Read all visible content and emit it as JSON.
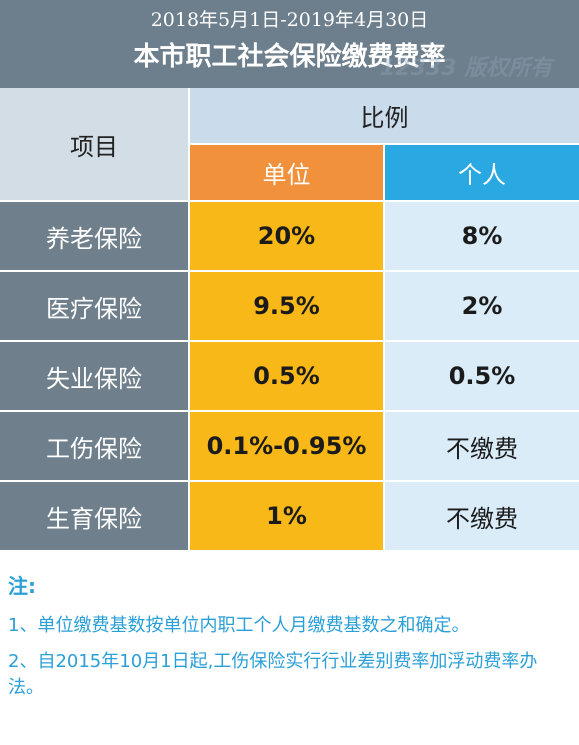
{
  "header": {
    "period": "2018年5月1日-2019年4月30日",
    "title": "本市职工社会保险缴费费率"
  },
  "table": {
    "col_item": "项目",
    "col_ratio": "比例",
    "col_unit": "单位",
    "col_person": "个人",
    "rows": [
      {
        "item": "养老保险",
        "unit": "20%",
        "person": "8%"
      },
      {
        "item": "医疗保险",
        "unit": "9.5%",
        "person": "2%"
      },
      {
        "item": "失业保险",
        "unit": "0.5%",
        "person": "0.5%"
      },
      {
        "item": "工伤保险",
        "unit": "0.1%-0.95%",
        "person": "不缴费"
      },
      {
        "item": "生育保险",
        "unit": "1%",
        "person": "不缴费"
      }
    ]
  },
  "notes": {
    "head": "注:",
    "items": [
      "1、单位缴费基数按单位内职工个人月缴费基数之和确定。",
      "2、自2015年10月1日起,工伤保险实行行业差别费率加浮动费率办法。"
    ]
  },
  "colors": {
    "header_bg": "#6d7e8c",
    "unit_header": "#f2913c",
    "person_header": "#29a8e1",
    "unit_cell": "#f7b818",
    "person_cell": "#d9ecf8",
    "note_text": "#2a9fd8"
  },
  "watermark": "12333 版权所有"
}
